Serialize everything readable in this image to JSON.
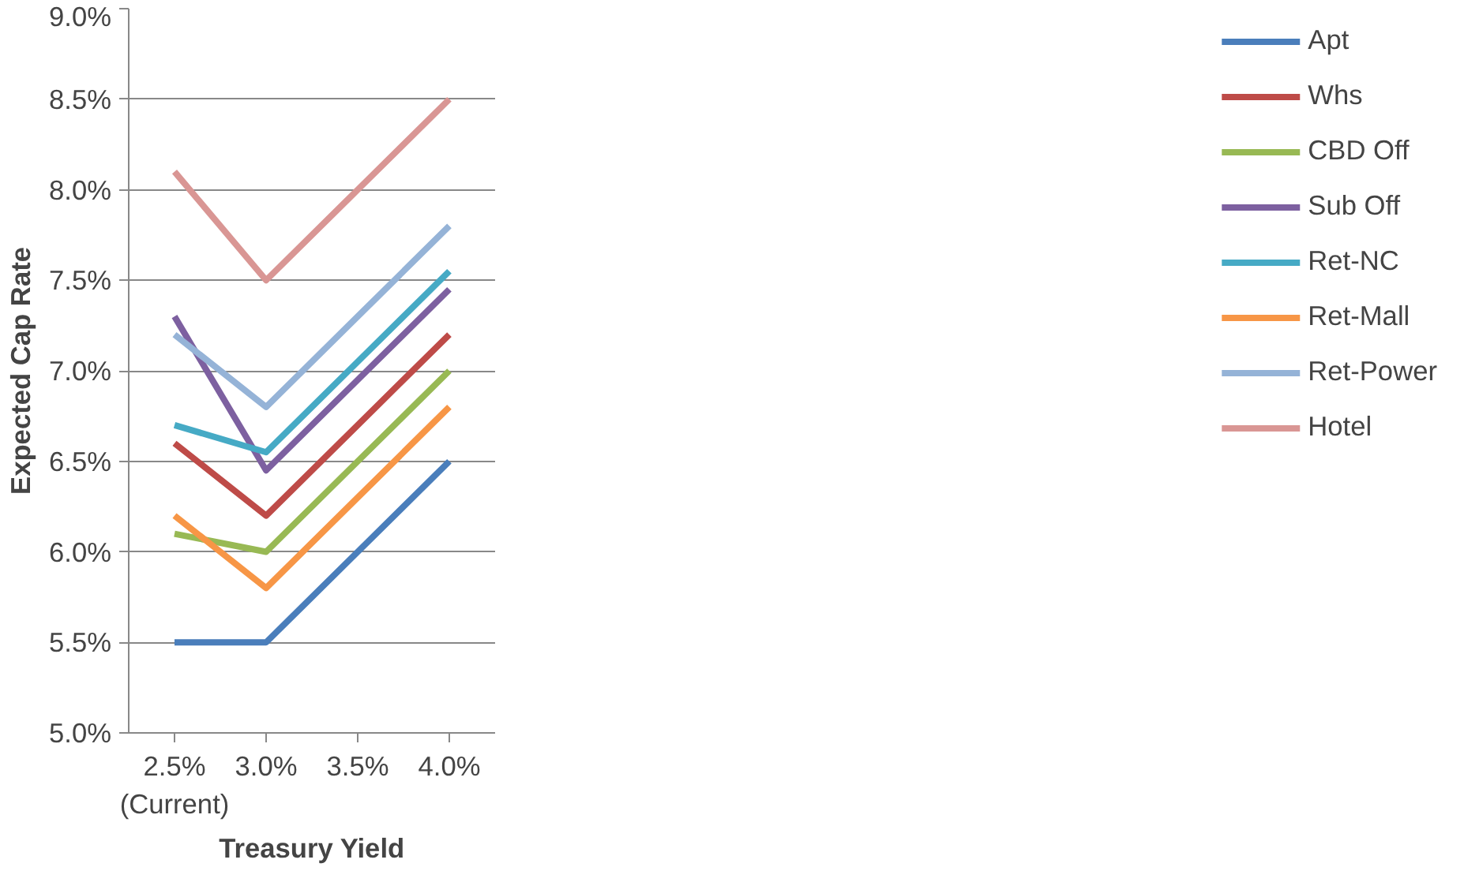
{
  "chart_data": {
    "type": "line",
    "xlabel": "Treasury Yield",
    "ylabel": "Expected Cap Rate",
    "categories": [
      "2.5%\n(Current)",
      "3.0%",
      "3.5%",
      "4.0%"
    ],
    "ylim": [
      5.0,
      9.0
    ],
    "yticks": [
      {
        "value": 5.0,
        "label": "5.0%"
      },
      {
        "value": 5.5,
        "label": "5.5%"
      },
      {
        "value": 6.0,
        "label": "6.0%"
      },
      {
        "value": 6.5,
        "label": "6.5%"
      },
      {
        "value": 7.0,
        "label": "7.0%"
      },
      {
        "value": 7.5,
        "label": "7.5%"
      },
      {
        "value": 8.0,
        "label": "8.0%"
      },
      {
        "value": 8.5,
        "label": "8.5%"
      },
      {
        "value": 9.0,
        "label": "9.0%"
      }
    ],
    "grid": "y",
    "legend": "right",
    "marker": "none",
    "line_style": "solid",
    "series": [
      {
        "name": "Apt",
        "color": "#4a7ebb",
        "values": [
          5.5,
          5.5,
          6.0,
          6.5
        ]
      },
      {
        "name": "Whs",
        "color": "#be4b48",
        "values": [
          6.6,
          6.2,
          6.7,
          7.2
        ]
      },
      {
        "name": "CBD Off",
        "color": "#98b954",
        "values": [
          6.1,
          6.0,
          6.5,
          7.0
        ]
      },
      {
        "name": "Sub Off",
        "color": "#7d60a0",
        "values": [
          7.3,
          6.45,
          6.95,
          7.45
        ]
      },
      {
        "name": "Ret-NC",
        "color": "#46aac5",
        "values": [
          6.7,
          6.55,
          7.05,
          7.55
        ]
      },
      {
        "name": "Ret-Mall",
        "color": "#f79646",
        "values": [
          6.2,
          5.8,
          6.3,
          6.8
        ]
      },
      {
        "name": "Ret-Power",
        "color": "#95b3d7",
        "values": [
          7.2,
          6.8,
          7.3,
          7.8
        ]
      },
      {
        "name": "Hotel",
        "color": "#d99694",
        "values": [
          8.1,
          7.5,
          8.0,
          8.5
        ]
      }
    ]
  }
}
